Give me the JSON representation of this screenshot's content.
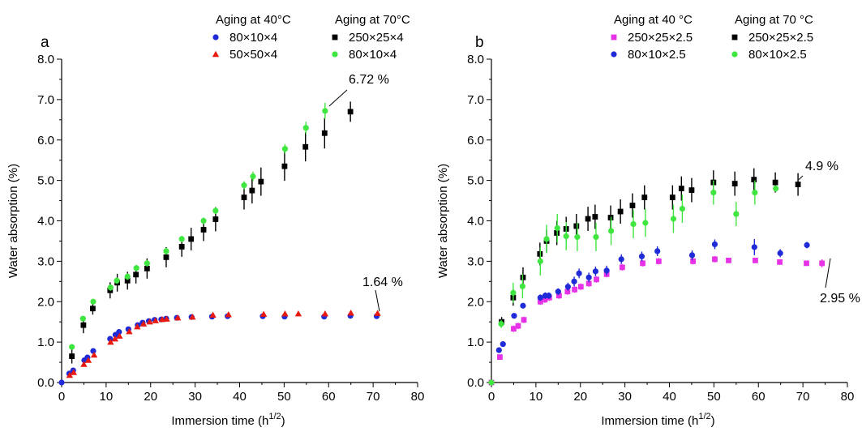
{
  "chart_data": [
    {
      "type": "scatter",
      "panel_label": "a",
      "xlabel": "Immersion time (h",
      "xlabel_sup": "1/2",
      "xlabel_end": ")",
      "ylabel": "Water absorption (%)",
      "xlim": [
        0,
        80
      ],
      "ylim": [
        0,
        8
      ],
      "x_ticks": [
        "0",
        "10",
        "20",
        "30",
        "40",
        "50",
        "60",
        "70",
        "80"
      ],
      "y_ticks": [
        "0.0",
        "1.0",
        "2.0",
        "3.0",
        "4.0",
        "5.0",
        "6.0",
        "7.0",
        "8.0"
      ],
      "legend_headers": [
        "Aging at 40°C",
        "Aging at 70°C"
      ],
      "series": [
        {
          "name": "80×10×4",
          "group": "Aging at 40°C",
          "marker": "circle",
          "color": "#1f2bd6",
          "x": [
            0,
            1.7,
            2.6,
            5.1,
            5.8,
            7.1,
            10.9,
            12.1,
            12.9,
            15.0,
            17.1,
            18.2,
            19.6,
            20.9,
            22.4,
            23.5,
            25.9,
            29.2,
            33.8,
            37.3,
            45.2,
            50.1,
            59.0,
            64.9,
            70.8
          ],
          "y": [
            0,
            0.22,
            0.3,
            0.55,
            0.62,
            0.78,
            1.08,
            1.18,
            1.25,
            1.32,
            1.42,
            1.48,
            1.52,
            1.55,
            1.56,
            1.58,
            1.6,
            1.62,
            1.63,
            1.64,
            1.64,
            1.63,
            1.63,
            1.65,
            1.64
          ],
          "err": [
            0,
            0.03,
            0.04,
            0.05,
            0.05,
            0.05,
            0.05,
            0.05,
            0.05,
            0.04,
            0.04,
            0.04,
            0.03,
            0.03,
            0.03,
            0.03,
            0.03,
            0.03,
            0.03,
            0.03,
            0.03,
            0.03,
            0.03,
            0.03,
            0.03
          ]
        },
        {
          "name": "50×50×4",
          "group": "Aging at 40°C",
          "marker": "triangle",
          "color": "#e8190f",
          "x": [
            1.8,
            2.7,
            5.0,
            6.0,
            7.3,
            11.0,
            12.0,
            13.0,
            15.2,
            17.0,
            18.4,
            19.8,
            21.1,
            22.6,
            23.6,
            26.1,
            29.4,
            34.0,
            37.5,
            45.4,
            50.2,
            53.2,
            59.2,
            65.0,
            71.0
          ],
          "y": [
            0.18,
            0.25,
            0.45,
            0.55,
            0.68,
            1.0,
            1.08,
            1.15,
            1.26,
            1.38,
            1.45,
            1.5,
            1.53,
            1.56,
            1.57,
            1.6,
            1.62,
            1.67,
            1.68,
            1.69,
            1.7,
            1.7,
            1.7,
            1.72,
            1.71
          ],
          "err": [
            0,
            0,
            0,
            0,
            0,
            0,
            0,
            0,
            0,
            0,
            0,
            0,
            0,
            0,
            0,
            0,
            0,
            0,
            0,
            0,
            0,
            0,
            0,
            0,
            0
          ]
        },
        {
          "name": "250×25×4",
          "group": "Aging at 70°C",
          "marker": "square",
          "color": "#000000",
          "x": [
            2.3,
            4.9,
            7.0,
            10.9,
            12.5,
            14.8,
            16.7,
            19.2,
            23.5,
            27.0,
            29.1,
            31.9,
            34.6,
            41.0,
            42.8,
            44.8,
            50.1,
            54.8,
            59.1,
            64.9
          ],
          "y": [
            0.65,
            1.42,
            1.83,
            2.28,
            2.47,
            2.52,
            2.67,
            2.82,
            3.1,
            3.36,
            3.55,
            3.78,
            4.04,
            4.58,
            4.75,
            4.97,
            5.35,
            5.83,
            6.17,
            6.7
          ],
          "err": [
            0.18,
            0.2,
            0.15,
            0.2,
            0.22,
            0.22,
            0.22,
            0.25,
            0.25,
            0.25,
            0.28,
            0.28,
            0.3,
            0.3,
            0.32,
            0.35,
            0.36,
            0.36,
            0.38,
            0.25
          ]
        },
        {
          "name": "80×10×4",
          "group": "Aging at 70°C",
          "marker": "circle",
          "color": "#3fe63f",
          "x": [
            2.3,
            4.8,
            7.1,
            11.0,
            12.4,
            14.8,
            16.8,
            19.2,
            23.5,
            27.0,
            31.9,
            34.6,
            41.0,
            43.0,
            50.2,
            54.9,
            59.2
          ],
          "y": [
            0.88,
            1.58,
            2.0,
            2.35,
            2.52,
            2.62,
            2.83,
            2.95,
            3.25,
            3.55,
            4.0,
            4.25,
            4.88,
            5.1,
            5.78,
            6.3,
            6.72
          ],
          "err": [
            0.05,
            0.05,
            0.05,
            0.08,
            0.08,
            0.08,
            0.08,
            0.08,
            0.08,
            0.08,
            0.08,
            0.08,
            0.1,
            0.12,
            0.12,
            0.15,
            0.2
          ]
        }
      ],
      "annotations": [
        {
          "text": "6.72 %",
          "x": 59.2,
          "y": 6.72
        },
        {
          "text": "1.64 %",
          "x": 70.8,
          "y": 1.64
        }
      ]
    },
    {
      "type": "scatter",
      "panel_label": "b",
      "xlabel": "Immersion time (h",
      "xlabel_sup": "1/2",
      "xlabel_end": ")",
      "ylabel": "Water absorption (%)",
      "xlim": [
        0,
        80
      ],
      "ylim": [
        0,
        8
      ],
      "x_ticks": [
        "0",
        "10",
        "20",
        "30",
        "40",
        "50",
        "60",
        "70",
        "80"
      ],
      "y_ticks": [
        "0.0",
        "1.0",
        "2.0",
        "3.0",
        "4.0",
        "5.0",
        "6.0",
        "7.0",
        "8.0"
      ],
      "legend_headers": [
        "Aging at 40 °C",
        "Aging at 70 °C"
      ],
      "series": [
        {
          "name": "250×25×2.5",
          "group": "Aging at 40 °C",
          "marker": "square",
          "color": "#e633e6",
          "x": [
            0,
            1.9,
            5.0,
            6.0,
            7.3,
            11.0,
            12.0,
            13.0,
            15.2,
            17.1,
            18.7,
            20.1,
            21.9,
            23.6,
            25.9,
            29.4,
            34.0,
            37.6,
            45.3,
            50.2,
            53.3,
            59.3,
            64.8,
            70.8,
            74.3
          ],
          "y": [
            0,
            0.63,
            1.33,
            1.4,
            1.55,
            2.0,
            2.05,
            2.1,
            2.15,
            2.25,
            2.3,
            2.37,
            2.45,
            2.55,
            2.68,
            2.85,
            2.95,
            3.0,
            3.0,
            3.05,
            3.02,
            3.02,
            2.98,
            2.95,
            2.95
          ],
          "err": [
            0,
            0.05,
            0.08,
            0.08,
            0.08,
            0.08,
            0.08,
            0.08,
            0.08,
            0.08,
            0.08,
            0.08,
            0.08,
            0.08,
            0.08,
            0.08,
            0.08,
            0.08,
            0.08,
            0.08,
            0.05,
            0.05,
            0.05,
            0.05,
            0.1
          ]
        },
        {
          "name": "80×10×2.5",
          "group": "Aging at 40 °C",
          "marker": "circle",
          "color": "#1f2bd6",
          "x": [
            1.7,
            2.6,
            5.1,
            7.1,
            11.0,
            12.1,
            12.9,
            15.0,
            17.2,
            18.6,
            19.7,
            21.9,
            23.4,
            25.9,
            29.2,
            33.8,
            37.3,
            45.1,
            50.2,
            59.1,
            64.9,
            70.9
          ],
          "y": [
            0.8,
            0.95,
            1.65,
            1.9,
            2.1,
            2.15,
            2.15,
            2.25,
            2.37,
            2.5,
            2.7,
            2.6,
            2.75,
            2.77,
            3.05,
            3.12,
            3.25,
            3.15,
            3.42,
            3.35,
            3.2,
            3.4
          ],
          "err": [
            0.05,
            0.06,
            0.06,
            0.06,
            0.08,
            0.08,
            0.08,
            0.08,
            0.1,
            0.12,
            0.12,
            0.12,
            0.12,
            0.12,
            0.12,
            0.12,
            0.12,
            0.12,
            0.12,
            0.2,
            0.1,
            0.08
          ]
        },
        {
          "name": "250×25×2.5",
          "group": "Aging at 70 °C",
          "marker": "square",
          "color": "#000000",
          "x": [
            2.3,
            4.9,
            7.1,
            10.9,
            12.4,
            14.7,
            16.8,
            19.1,
            21.7,
            23.3,
            26.8,
            29.0,
            31.7,
            34.4,
            40.7,
            42.7,
            45.0,
            49.9,
            54.7,
            59.0,
            63.8,
            68.9
          ],
          "y": [
            1.5,
            2.1,
            2.6,
            3.18,
            3.5,
            3.7,
            3.8,
            3.87,
            4.05,
            4.1,
            4.08,
            4.23,
            4.38,
            4.58,
            4.58,
            4.8,
            4.76,
            4.95,
            4.92,
            5.02,
            4.95,
            4.9
          ],
          "err": [
            0.12,
            0.2,
            0.25,
            0.28,
            0.28,
            0.3,
            0.3,
            0.3,
            0.3,
            0.3,
            0.3,
            0.3,
            0.3,
            0.3,
            0.3,
            0.3,
            0.3,
            0.3,
            0.3,
            0.28,
            0.25,
            0.28
          ]
        },
        {
          "name": "80×10×2.5",
          "group": "Aging at 70 °C",
          "marker": "circle",
          "color": "#3fe63f",
          "x": [
            0,
            2.2,
            4.9,
            7.0,
            11.0,
            12.4,
            14.8,
            16.8,
            19.3,
            23.5,
            26.9,
            31.9,
            34.6,
            40.9,
            42.9,
            49.9,
            55.0,
            59.2,
            63.9
          ],
          "y": [
            0,
            1.45,
            2.22,
            2.38,
            3.0,
            3.55,
            3.82,
            3.62,
            3.6,
            3.6,
            3.75,
            3.92,
            3.95,
            4.05,
            4.3,
            4.7,
            4.17,
            4.7,
            4.8
          ],
          "err": [
            0,
            0.1,
            0.25,
            0.3,
            0.35,
            0.35,
            0.35,
            0.35,
            0.35,
            0.35,
            0.35,
            0.35,
            0.35,
            0.35,
            0.35,
            0.3,
            0.3,
            0.3,
            0.08
          ]
        }
      ],
      "annotations": [
        {
          "text": "4.9 %",
          "x": 68.9,
          "y": 4.9
        },
        {
          "text": "2.95 %",
          "x": 74.3,
          "y": 2.95
        }
      ]
    }
  ]
}
